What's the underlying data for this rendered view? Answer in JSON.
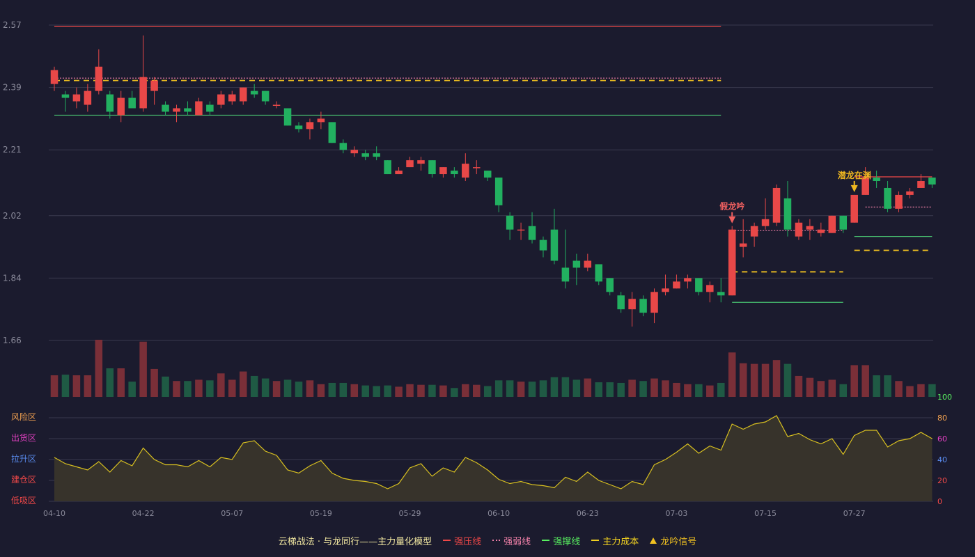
{
  "chart_data": {
    "type": "candlestick",
    "price_axis": {
      "ticks": [
        2.57,
        2.39,
        2.21,
        2.02,
        1.84,
        1.66
      ],
      "range": [
        1.66,
        2.57
      ]
    },
    "indicator_axis": {
      "ticks": [
        0,
        20,
        40,
        60,
        80,
        100
      ],
      "range": [
        0,
        100
      ]
    },
    "zones": [
      {
        "label": "风险区",
        "color": "#f0a050"
      },
      {
        "label": "出货区",
        "color": "#e040c0"
      },
      {
        "label": "拉升区",
        "color": "#5a8cf0"
      },
      {
        "label": "建仓区",
        "color": "#f04848"
      },
      {
        "label": "低吸区",
        "color": "#f04848"
      }
    ],
    "x_tick_labels": [
      "04-10",
      "04-22",
      "05-07",
      "05-19",
      "05-29",
      "06-10",
      "06-23",
      "07-03",
      "07-15",
      "07-27"
    ],
    "x_tick_index": [
      0,
      8,
      16,
      24,
      32,
      40,
      48,
      56,
      64,
      72
    ],
    "candles": [
      [
        2.4,
        2.44,
        2.45,
        2.38
      ],
      [
        2.37,
        2.36,
        2.38,
        2.32
      ],
      [
        2.35,
        2.37,
        2.39,
        2.33
      ],
      [
        2.34,
        2.38,
        2.4,
        2.32
      ],
      [
        2.38,
        2.45,
        2.5,
        2.37
      ],
      [
        2.37,
        2.32,
        2.38,
        2.3
      ],
      [
        2.31,
        2.36,
        2.38,
        2.29
      ],
      [
        2.36,
        2.33,
        2.38,
        2.33
      ],
      [
        2.33,
        2.42,
        2.54,
        2.32
      ],
      [
        2.38,
        2.41,
        2.42,
        2.34
      ],
      [
        2.34,
        2.32,
        2.35,
        2.31
      ],
      [
        2.32,
        2.33,
        2.34,
        2.29
      ],
      [
        2.33,
        2.32,
        2.35,
        2.31
      ],
      [
        2.31,
        2.35,
        2.36,
        2.31
      ],
      [
        2.34,
        2.32,
        2.35,
        2.31
      ],
      [
        2.34,
        2.37,
        2.38,
        2.33
      ],
      [
        2.35,
        2.37,
        2.38,
        2.34
      ],
      [
        2.35,
        2.39,
        2.39,
        2.34
      ],
      [
        2.38,
        2.37,
        2.4,
        2.36
      ],
      [
        2.38,
        2.35,
        2.38,
        2.34
      ],
      [
        2.34,
        2.34,
        2.35,
        2.33
      ],
      [
        2.33,
        2.28,
        2.33,
        2.28
      ],
      [
        2.28,
        2.27,
        2.29,
        2.26
      ],
      [
        2.27,
        2.29,
        2.3,
        2.24
      ],
      [
        2.29,
        2.3,
        2.32,
        2.27
      ],
      [
        2.29,
        2.23,
        2.29,
        2.23
      ],
      [
        2.23,
        2.21,
        2.24,
        2.2
      ],
      [
        2.2,
        2.21,
        2.22,
        2.19
      ],
      [
        2.2,
        2.19,
        2.21,
        2.18
      ],
      [
        2.2,
        2.19,
        2.22,
        2.18
      ],
      [
        2.18,
        2.14,
        2.18,
        2.14
      ],
      [
        2.14,
        2.15,
        2.16,
        2.14
      ],
      [
        2.16,
        2.18,
        2.19,
        2.16
      ],
      [
        2.17,
        2.18,
        2.19,
        2.15
      ],
      [
        2.18,
        2.14,
        2.18,
        2.13
      ],
      [
        2.14,
        2.16,
        2.16,
        2.13
      ],
      [
        2.15,
        2.14,
        2.16,
        2.13
      ],
      [
        2.13,
        2.17,
        2.2,
        2.12
      ],
      [
        2.16,
        2.16,
        2.18,
        2.14
      ],
      [
        2.15,
        2.13,
        2.15,
        2.12
      ],
      [
        2.13,
        2.05,
        2.13,
        2.03
      ],
      [
        2.02,
        1.98,
        2.03,
        1.95
      ],
      [
        1.98,
        1.98,
        2.0,
        1.95
      ],
      [
        1.99,
        1.95,
        2.03,
        1.94
      ],
      [
        1.95,
        1.92,
        1.96,
        1.9
      ],
      [
        1.98,
        1.89,
        2.04,
        1.88
      ],
      [
        1.87,
        1.83,
        1.98,
        1.81
      ],
      [
        1.89,
        1.87,
        1.91,
        1.82
      ],
      [
        1.87,
        1.89,
        1.91,
        1.86
      ],
      [
        1.88,
        1.83,
        1.88,
        1.82
      ],
      [
        1.84,
        1.8,
        1.84,
        1.79
      ],
      [
        1.79,
        1.75,
        1.8,
        1.74
      ],
      [
        1.75,
        1.78,
        1.8,
        1.7
      ],
      [
        1.78,
        1.74,
        1.79,
        1.73
      ],
      [
        1.74,
        1.8,
        1.81,
        1.71
      ],
      [
        1.8,
        1.81,
        1.85,
        1.79
      ],
      [
        1.81,
        1.83,
        1.85,
        1.81
      ],
      [
        1.83,
        1.84,
        1.85,
        1.81
      ],
      [
        1.84,
        1.8,
        1.84,
        1.79
      ],
      [
        1.8,
        1.82,
        1.83,
        1.77
      ],
      [
        1.8,
        1.79,
        1.84,
        1.77
      ],
      [
        1.79,
        1.98,
        1.99,
        1.79
      ],
      [
        1.93,
        1.94,
        2.01,
        1.9
      ],
      [
        1.96,
        1.99,
        2.0,
        1.93
      ],
      [
        1.99,
        2.01,
        2.07,
        1.98
      ],
      [
        2.0,
        2.1,
        2.11,
        1.99
      ],
      [
        2.07,
        1.98,
        2.12,
        1.96
      ],
      [
        1.96,
        2.0,
        2.01,
        1.95
      ],
      [
        1.98,
        1.99,
        2.01,
        1.95
      ],
      [
        1.97,
        1.98,
        2.0,
        1.96
      ],
      [
        1.97,
        2.02,
        2.02,
        1.97
      ],
      [
        2.02,
        1.98,
        2.02,
        1.97
      ],
      [
        2.0,
        2.08,
        2.08,
        2.0
      ],
      [
        2.08,
        2.13,
        2.16,
        2.08
      ],
      [
        2.13,
        2.12,
        2.15,
        2.1
      ],
      [
        2.1,
        2.04,
        2.12,
        2.03
      ],
      [
        2.04,
        2.08,
        2.09,
        2.03
      ],
      [
        2.08,
        2.09,
        2.1,
        2.07
      ],
      [
        2.1,
        2.12,
        2.14,
        2.11
      ],
      [
        2.13,
        2.11,
        2.13,
        2.1
      ]
    ],
    "volume": [
      34,
      35,
      34,
      34,
      90,
      45,
      45,
      24,
      87,
      44,
      32,
      25,
      25,
      27,
      26,
      37,
      27,
      40,
      33,
      29,
      25,
      27,
      24,
      26,
      20,
      22,
      22,
      20,
      18,
      17,
      18,
      16,
      20,
      19,
      19,
      18,
      14,
      20,
      19,
      17,
      26,
      26,
      24,
      24,
      26,
      31,
      31,
      27,
      29,
      23,
      23,
      22,
      27,
      25,
      29,
      26,
      22,
      20,
      20,
      18,
      22,
      70,
      53,
      52,
      52,
      58,
      52,
      33,
      30,
      25,
      27,
      20,
      50,
      50,
      34,
      34,
      25,
      17,
      20,
      20
    ],
    "indicator": [
      42,
      36,
      33,
      30,
      38,
      28,
      39,
      34,
      51,
      40,
      35,
      35,
      33,
      39,
      33,
      42,
      40,
      56,
      58,
      48,
      44,
      30,
      27,
      34,
      39,
      27,
      22,
      20,
      19,
      17,
      12,
      17,
      32,
      36,
      24,
      32,
      28,
      42,
      37,
      30,
      21,
      17,
      19,
      16,
      15,
      13,
      23,
      19,
      28,
      20,
      16,
      12,
      19,
      16,
      35,
      40,
      47,
      55,
      46,
      53,
      49,
      74,
      69,
      74,
      76,
      82,
      62,
      65,
      59,
      55,
      60,
      45,
      63,
      68,
      68,
      52,
      58,
      60,
      66,
      60
    ],
    "lines": [
      {
        "name": "强压线",
        "style": "solid",
        "color": "#f04848",
        "segments": [
          {
            "from": 0,
            "to": 60,
            "value": 2.566
          },
          {
            "from": 72,
            "to": 79,
            "value": 2.132
          }
        ]
      },
      {
        "name": "强弱线",
        "style": "dotted",
        "color": "#f080a8",
        "segments": [
          {
            "from": 0,
            "to": 60,
            "value": 2.417
          },
          {
            "from": 61,
            "to": 71,
            "value": 1.977
          },
          {
            "from": 73,
            "to": 79,
            "value": 2.045
          }
        ]
      },
      {
        "name": "强撑线",
        "style": "solid",
        "color": "#48c070",
        "segments": [
          {
            "from": 0,
            "to": 60,
            "value": 2.31
          },
          {
            "from": 61,
            "to": 71,
            "value": 1.77
          },
          {
            "from": 72,
            "to": 79,
            "value": 1.96
          }
        ]
      },
      {
        "name": "主力成本",
        "style": "dashed",
        "color": "#f0c020",
        "segments": [
          {
            "from": 0,
            "to": 60,
            "value": 2.41
          },
          {
            "from": 61,
            "to": 71,
            "value": 1.858
          },
          {
            "from": 72,
            "to": 79,
            "value": 1.92
          }
        ]
      }
    ],
    "annotations": [
      {
        "text": "假龙吟",
        "index": 61,
        "color": "#f06060",
        "arrow": "red"
      },
      {
        "text": "潜龙在渊",
        "index": 72,
        "color": "#f0b820",
        "arrow": "gold"
      }
    ],
    "colors": {
      "up": "#e84848",
      "down": "#22b060",
      "up_vol": "#7a2f38",
      "down_vol": "#1f5a44",
      "indicator_line": "#d8c020",
      "indicator_fill": "#37332b",
      "grid": "#3a3a4e",
      "axis_text": "#8a8a9a",
      "bg": "#1b1b2e"
    }
  },
  "legend": {
    "title": "云梯战法 · 与龙同行——主力量化模型",
    "title_color": "#f0e6a0",
    "items": [
      {
        "label": "强压线",
        "style": "solid",
        "color": "#f04848"
      },
      {
        "label": "强弱线",
        "style": "dotted",
        "color": "#f080a8"
      },
      {
        "label": "强撑线",
        "style": "solid",
        "color": "#58f060"
      },
      {
        "label": "主力成本",
        "style": "dashed",
        "color": "#f0d020"
      },
      {
        "label": "龙吟信号",
        "style": "triangle",
        "color": "#f0c020"
      }
    ]
  }
}
